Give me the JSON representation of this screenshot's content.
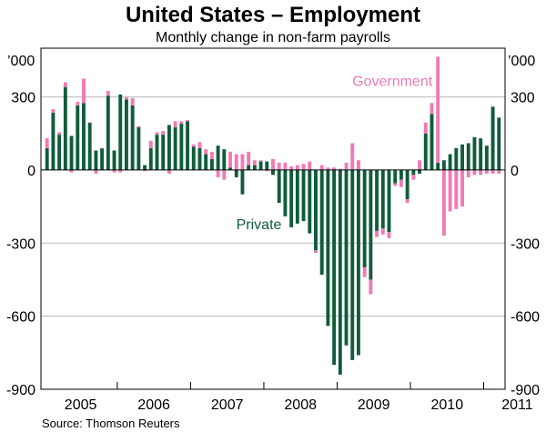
{
  "chart_data": {
    "type": "bar",
    "stacked": true,
    "title": "United States – Employment",
    "subtitle": "Monthly change in non-farm payrolls",
    "units_left": "’000",
    "units_right": "’000",
    "ylim": [
      -900,
      500
    ],
    "yticks": [
      {
        "value": 300,
        "label": "300"
      },
      {
        "value": 0,
        "label": "0"
      },
      {
        "value": -300,
        "label": "-300"
      },
      {
        "value": -600,
        "label": "-600"
      },
      {
        "value": -900,
        "label": "-900"
      }
    ],
    "years": [
      "2005",
      "2006",
      "2007",
      "2008",
      "2009",
      "2010",
      "2011"
    ],
    "months": [
      "2005-01",
      "2005-02",
      "2005-03",
      "2005-04",
      "2005-05",
      "2005-06",
      "2005-07",
      "2005-08",
      "2005-09",
      "2005-10",
      "2005-11",
      "2005-12",
      "2006-01",
      "2006-02",
      "2006-03",
      "2006-04",
      "2006-05",
      "2006-06",
      "2006-07",
      "2006-08",
      "2006-09",
      "2006-10",
      "2006-11",
      "2006-12",
      "2007-01",
      "2007-02",
      "2007-03",
      "2007-04",
      "2007-05",
      "2007-06",
      "2007-07",
      "2007-08",
      "2007-09",
      "2007-10",
      "2007-11",
      "2007-12",
      "2008-01",
      "2008-02",
      "2008-03",
      "2008-04",
      "2008-05",
      "2008-06",
      "2008-07",
      "2008-08",
      "2008-09",
      "2008-10",
      "2008-11",
      "2008-12",
      "2009-01",
      "2009-02",
      "2009-03",
      "2009-04",
      "2009-05",
      "2009-06",
      "2009-07",
      "2009-08",
      "2009-09",
      "2009-10",
      "2009-11",
      "2009-12",
      "2010-01",
      "2010-02",
      "2010-03",
      "2010-04",
      "2010-05",
      "2010-06",
      "2010-07",
      "2010-08",
      "2010-09",
      "2010-10",
      "2010-11",
      "2010-12",
      "2011-01",
      "2011-02",
      "2011-03"
    ],
    "series": [
      {
        "name": "Private",
        "color": "#0f5c3a",
        "values": [
          90,
          235,
          145,
          340,
          140,
          265,
          275,
          195,
          80,
          90,
          305,
          80,
          310,
          290,
          265,
          175,
          20,
          90,
          145,
          145,
          185,
          175,
          190,
          200,
          95,
          90,
          65,
          45,
          100,
          85,
          10,
          -30,
          -100,
          20,
          20,
          35,
          35,
          -20,
          -135,
          -190,
          -235,
          -220,
          -210,
          -260,
          -330,
          -430,
          -640,
          -800,
          -840,
          -720,
          -780,
          -760,
          -400,
          -450,
          -250,
          -240,
          -255,
          -55,
          -40,
          -120,
          -20,
          -15,
          150,
          230,
          30,
          40,
          65,
          90,
          105,
          110,
          135,
          130,
          100,
          260,
          215
        ],
        "labels": [
          {
            "text": "Private",
            "month_index": 39
          }
        ]
      },
      {
        "name": "Government",
        "color": "#f07ab4",
        "values": [
          40,
          15,
          10,
          20,
          -10,
          15,
          100,
          0,
          -15,
          0,
          20,
          -10,
          -10,
          10,
          30,
          5,
          -5,
          30,
          10,
          15,
          -15,
          25,
          10,
          5,
          10,
          25,
          20,
          30,
          -30,
          -40,
          65,
          65,
          65,
          55,
          20,
          5,
          -5,
          45,
          30,
          30,
          15,
          20,
          25,
          35,
          -10,
          20,
          10,
          10,
          5,
          30,
          110,
          40,
          -40,
          -60,
          -25,
          -25,
          -25,
          -10,
          -30,
          -15,
          -20,
          40,
          45,
          45,
          435,
          -270,
          -170,
          -160,
          -150,
          -30,
          -20,
          -20,
          -15,
          -15,
          -15
        ],
        "labels": [
          {
            "text": "Government",
            "month_index": 64
          }
        ]
      }
    ],
    "source": "Source: Thomson Reuters"
  }
}
